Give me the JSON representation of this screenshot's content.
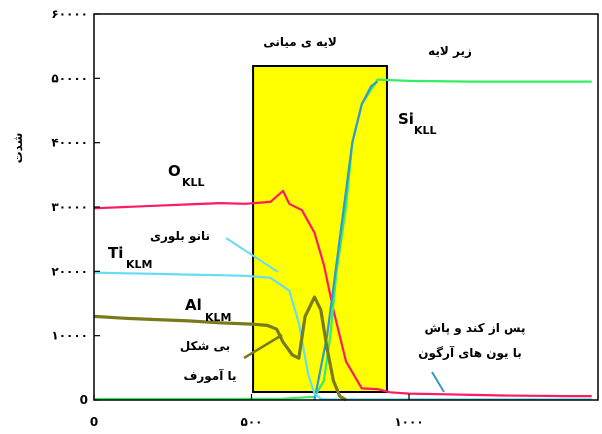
{
  "chart_data": {
    "type": "line",
    "title": "",
    "xlabel": "",
    "ylabel": "شدت",
    "xlim": [
      0,
      1600
    ],
    "ylim": [
      0,
      60000
    ],
    "x_ticks": [
      {
        "value": 0,
        "label": "0"
      },
      {
        "value": 500,
        "label": "۵۰۰"
      },
      {
        "value": 1000,
        "label": "۱۰۰۰"
      }
    ],
    "y_ticks": [
      {
        "value": 0,
        "label": "0"
      },
      {
        "value": 10000,
        "label": "۱۰۰۰۰"
      },
      {
        "value": 20000,
        "label": "۲۰۰۰۰"
      },
      {
        "value": 30000,
        "label": "۳۰۰۰۰"
      },
      {
        "value": 40000,
        "label": "۴۰۰۰۰"
      },
      {
        "value": 50000,
        "label": "۵۰۰۰۰"
      },
      {
        "value": 60000,
        "label": "۶۰۰۰۰"
      }
    ],
    "region": {
      "x_start": 505,
      "x_end": 930,
      "color": "#ffff00"
    },
    "series": [
      {
        "id": "o",
        "color": "#ff1a66",
        "width": 2.2,
        "x": [
          0,
          100,
          200,
          300,
          400,
          480,
          560,
          600,
          620,
          660,
          700,
          730,
          760,
          800,
          850,
          900,
          940,
          1000,
          1100,
          1200,
          1300,
          1400,
          1500,
          1580
        ],
        "y": [
          29800,
          30000,
          30200,
          30400,
          30600,
          30500,
          30800,
          32500,
          30500,
          29500,
          26000,
          21000,
          14000,
          6000,
          1800,
          1700,
          1200,
          1000,
          900,
          800,
          700,
          650,
          600,
          600
        ]
      },
      {
        "id": "si",
        "color": "#33ee66",
        "width": 2.2,
        "x": [
          0,
          200,
          400,
          600,
          700,
          730,
          750,
          770,
          800,
          820,
          850,
          900,
          1000,
          1200,
          1400,
          1580
        ],
        "y": [
          150,
          150,
          150,
          200,
          500,
          3000,
          10000,
          20000,
          30000,
          40000,
          46000,
          49800,
          49600,
          49500,
          49500,
          49500
        ]
      },
      {
        "id": "si_fit",
        "color": "#3399cc",
        "width": 2.2,
        "x": [
          700,
          740,
          780,
          820,
          850,
          880,
          900
        ],
        "y": [
          0,
          10000,
          25000,
          40000,
          46000,
          48800,
          49500
        ]
      },
      {
        "id": "ti",
        "color": "#66ddf0",
        "width": 2.2,
        "x": [
          0,
          100,
          200,
          300,
          400,
          480,
          560,
          620,
          650,
          680,
          700,
          720,
          740,
          1580
        ],
        "y": [
          19800,
          19700,
          19600,
          19500,
          19400,
          19300,
          19000,
          17000,
          12000,
          4000,
          1000,
          200,
          100,
          100
        ]
      },
      {
        "id": "al",
        "color": "#7a7a1a",
        "width": 3.2,
        "x": [
          0,
          100,
          200,
          300,
          400,
          500,
          550,
          580,
          600,
          630,
          650,
          670,
          700,
          720,
          740,
          760,
          780,
          800
        ],
        "y": [
          13000,
          12700,
          12500,
          12300,
          12000,
          11800,
          11600,
          11000,
          9000,
          7000,
          6500,
          13000,
          16000,
          14000,
          8000,
          3000,
          600,
          0
        ]
      }
    ],
    "annotations": [
      {
        "id": "middle_layer",
        "text": "لایه ی میانی"
      },
      {
        "id": "substrate",
        "text": "زیر لایه"
      },
      {
        "id": "nano_crystal",
        "text": "نانو بلوری"
      },
      {
        "id": "amorphous_1",
        "text": "بی شکل"
      },
      {
        "id": "amorphous_2",
        "text": "یا آمورف"
      },
      {
        "id": "after_clean_1",
        "text": "پس از کند و پاش"
      },
      {
        "id": "after_clean_2",
        "text": "با یون های آرگون"
      }
    ],
    "series_labels": [
      {
        "id": "o",
        "main": "O",
        "sub": "KLL"
      },
      {
        "id": "ti",
        "main": "Ti",
        "sub": "KLM"
      },
      {
        "id": "al",
        "main": "Al",
        "sub": "KLM"
      },
      {
        "id": "si",
        "main": "Si",
        "sub": "KLL"
      }
    ],
    "grid": false,
    "legend": "none"
  }
}
